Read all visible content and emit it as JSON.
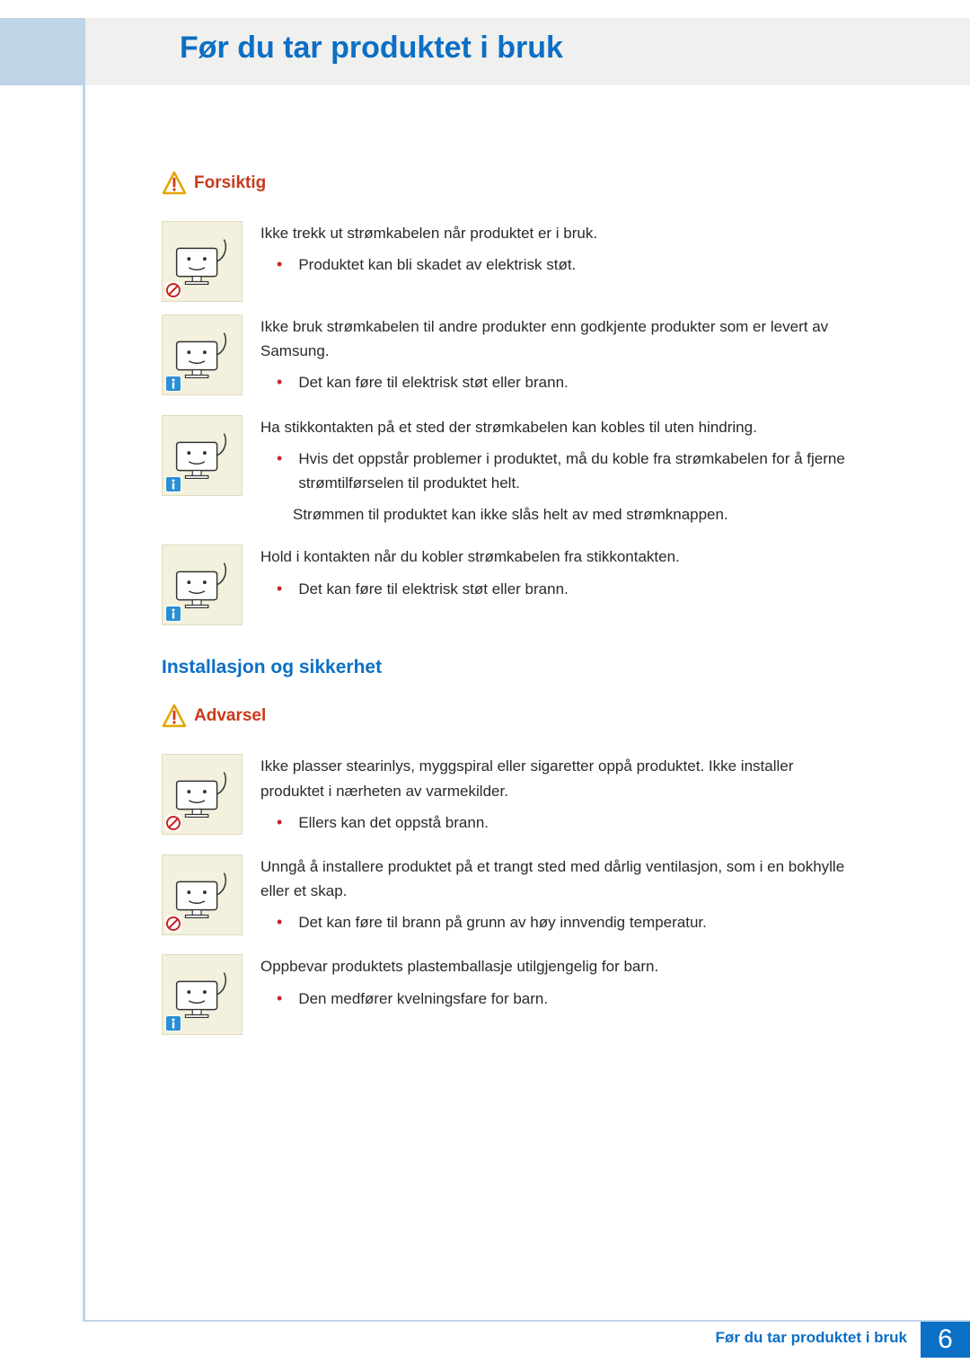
{
  "colors": {
    "accent_blue": "#0b6fc5",
    "accent_light_blue": "#c0d4e8",
    "warning_red": "#c93a1a",
    "bullet_red": "#c22",
    "icon_bg": "#f3f0dd",
    "top_bar_bg": "#f0f0ee",
    "text": "#2a2a2a"
  },
  "header": {
    "title": "Før du tar produktet i bruk"
  },
  "sections": [
    {
      "type": "warning_header",
      "label": "Forsiktig",
      "icon": "caution-triangle"
    },
    {
      "type": "item",
      "corner": "prohibit",
      "main": "Ikke trekk ut strømkabelen når produktet er i bruk.",
      "subs": [
        "Produktet kan bli skadet av elektrisk støt."
      ]
    },
    {
      "type": "item",
      "corner": "info",
      "main": "Ikke bruk strømkabelen til andre produkter enn godkjente produkter som er levert av Samsung.",
      "subs": [
        "Det kan føre til elektrisk støt eller brann."
      ]
    },
    {
      "type": "item",
      "corner": "info",
      "main": "Ha stikkontakten på et sted der strømkabelen kan kobles til uten hindring.",
      "subs": [
        "Hvis det oppstår problemer i produktet, må du koble fra strømkabelen for å fjerne strømtilførselen til produktet helt."
      ],
      "extra": "Strømmen til produktet kan ikke slås helt av med strømknappen."
    },
    {
      "type": "item",
      "corner": "info",
      "main": "Hold i kontakten når du kobler strømkabelen fra stikkontakten.",
      "subs": [
        "Det kan føre til elektrisk støt eller brann."
      ]
    },
    {
      "type": "section_title",
      "label": "Installasjon og sikkerhet"
    },
    {
      "type": "warning_header",
      "label": "Advarsel",
      "icon": "caution-triangle"
    },
    {
      "type": "item",
      "corner": "prohibit",
      "main": "Ikke plasser stearinlys, myggspiral eller sigaretter oppå produktet. Ikke installer produktet i nærheten av varmekilder.",
      "subs": [
        "Ellers kan det oppstå brann."
      ]
    },
    {
      "type": "item",
      "corner": "prohibit",
      "main": "Unngå å installere produktet på et trangt sted med dårlig ventilasjon, som i en bokhylle eller et skap.",
      "subs": [
        "Det kan føre til brann på grunn av høy innvendig temperatur."
      ]
    },
    {
      "type": "item",
      "corner": "info",
      "main": "Oppbevar produktets plastemballasje utilgjengelig for barn.",
      "subs": [
        "Den medfører kvelningsfare for barn."
      ]
    }
  ],
  "footer": {
    "text": "Før du tar produktet i bruk",
    "page": "6"
  }
}
